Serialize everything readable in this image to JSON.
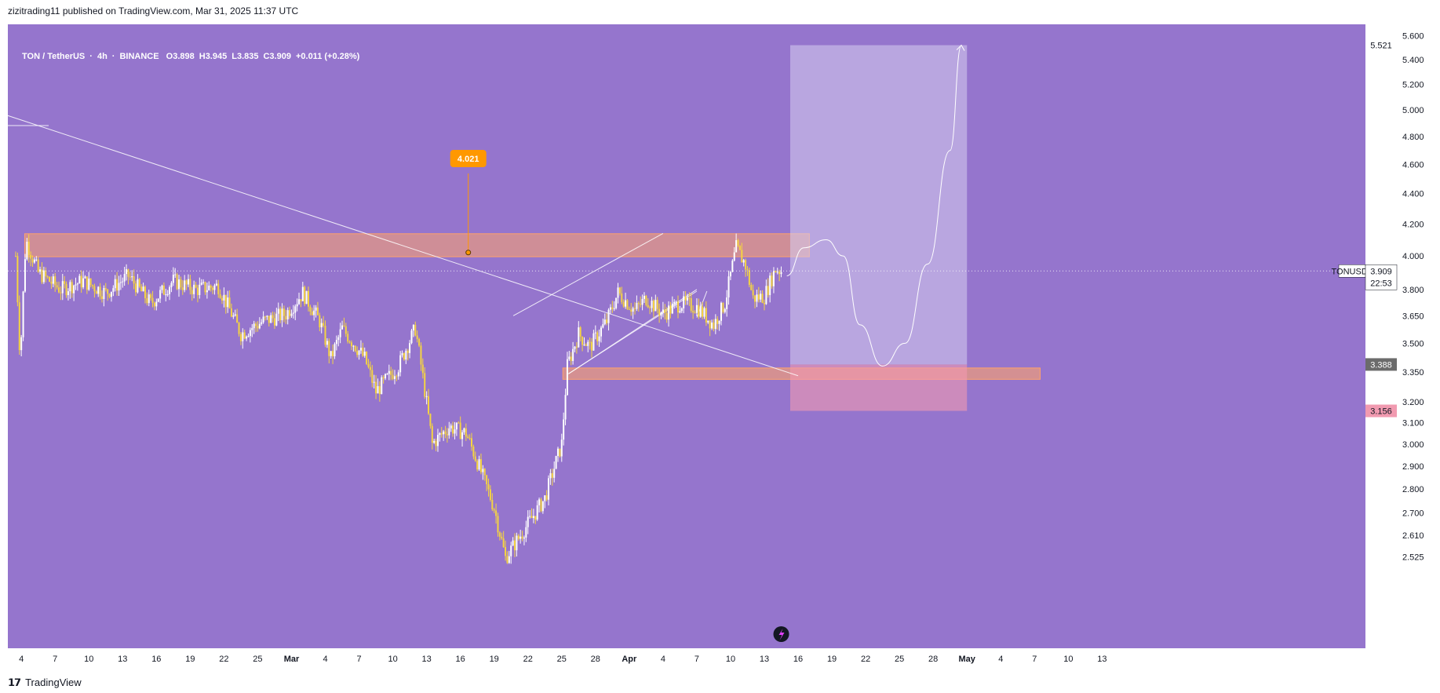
{
  "header": {
    "publisher_line": "zizitrading11 published on TradingView.com, Mar 31, 2025 11:37 UTC"
  },
  "symbol_info": {
    "pair": "TON / TetherUS",
    "interval": "4h",
    "exchange": "BINANCE",
    "open": "O3.898",
    "high": "H3.945",
    "low": "L3.835",
    "close": "C3.909",
    "change": "+0.011 (+0.28%)"
  },
  "footer": {
    "brand": "TradingView"
  },
  "colors": {
    "background": "#9575cd",
    "candle_up": "#ffffff",
    "candle_down": "#f5d442",
    "zone": "#ffa26b",
    "target_box": "#d7cdf0",
    "stop_box": "#f19ab0",
    "label_orange": "#ff9800"
  },
  "chart_data": {
    "type": "candlestick",
    "symbol": "TONUSDT",
    "timeframe": "4h",
    "y_axis": {
      "ticks": [
        "5.600",
        "5.400",
        "5.200",
        "5.000",
        "4.800",
        "4.600",
        "4.400",
        "4.200",
        "4.000",
        "3.800",
        "3.650",
        "3.500",
        "3.350",
        "3.200",
        "3.100",
        "3.000",
        "2.900",
        "2.800",
        "2.700",
        "2.610",
        "2.525"
      ],
      "scale": "log",
      "range": [
        2.49,
        5.7
      ]
    },
    "x_axis": {
      "ticks": [
        "4",
        "7",
        "10",
        "13",
        "16",
        "19",
        "22",
        "25",
        "Mar",
        "4",
        "7",
        "10",
        "13",
        "16",
        "19",
        "22",
        "25",
        "28",
        "Apr",
        "4",
        "7",
        "10",
        "13",
        "16",
        "19",
        "22",
        "25",
        "28",
        "May",
        "4",
        "7",
        "10",
        "13"
      ],
      "bold_ticks": [
        "Mar",
        "Apr",
        "May"
      ],
      "range_days": [
        0,
        107
      ]
    },
    "price_path": [
      [
        0,
        4.0
      ],
      [
        0.4,
        3.4
      ],
      [
        0.9,
        4.1
      ],
      [
        2,
        3.9
      ],
      [
        4,
        3.8
      ],
      [
        6,
        3.85
      ],
      [
        8,
        3.78
      ],
      [
        10,
        3.88
      ],
      [
        12,
        3.72
      ],
      [
        14,
        3.85
      ],
      [
        16,
        3.8
      ],
      [
        18,
        3.82
      ],
      [
        20,
        3.55
      ],
      [
        22,
        3.62
      ],
      [
        24,
        3.66
      ],
      [
        25.5,
        3.78
      ],
      [
        27,
        3.62
      ],
      [
        28,
        3.42
      ],
      [
        29,
        3.58
      ],
      [
        31,
        3.42
      ],
      [
        32,
        3.25
      ],
      [
        34,
        3.38
      ],
      [
        35.5,
        3.58
      ],
      [
        37,
        3.0
      ],
      [
        38.5,
        3.08
      ],
      [
        40,
        3.05
      ],
      [
        41,
        2.92
      ],
      [
        42.5,
        2.72
      ],
      [
        43.5,
        2.52
      ],
      [
        45,
        2.62
      ],
      [
        47,
        2.76
      ],
      [
        48.5,
        3.0
      ],
      [
        49,
        3.38
      ],
      [
        50,
        3.55
      ],
      [
        51,
        3.48
      ],
      [
        52.5,
        3.62
      ],
      [
        53.5,
        3.78
      ],
      [
        55,
        3.68
      ],
      [
        56,
        3.75
      ],
      [
        57.5,
        3.66
      ],
      [
        59,
        3.72
      ],
      [
        60.5,
        3.7
      ],
      [
        62,
        3.6
      ],
      [
        63,
        3.72
      ],
      [
        64,
        4.05
      ],
      [
        64.8,
        3.95
      ],
      [
        65.5,
        3.75
      ],
      [
        66.5,
        3.76
      ],
      [
        67.5,
        3.92
      ],
      [
        68,
        3.91
      ]
    ],
    "annotations": {
      "resistance_zone": {
        "from": 3.995,
        "to": 4.138
      },
      "support_zone": {
        "from": 3.312,
        "to": 3.37
      },
      "point_label": "4.021",
      "point_value": 4.021,
      "long_position": {
        "entry": 3.388,
        "target": 5.521,
        "stop": 3.156
      },
      "last_price": "3.909",
      "countdown": "22:53",
      "symbol_tag": "TONUSDT",
      "target_label": "5.521",
      "entry_label": "3.388",
      "stop_label": "3.156"
    }
  }
}
